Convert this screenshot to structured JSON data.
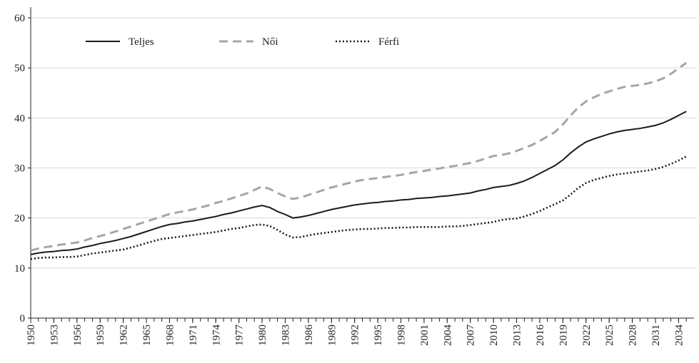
{
  "chart_data": {
    "type": "line",
    "x": [
      1950,
      1951,
      1952,
      1953,
      1954,
      1955,
      1956,
      1957,
      1958,
      1959,
      1960,
      1961,
      1962,
      1963,
      1964,
      1965,
      1966,
      1967,
      1968,
      1969,
      1970,
      1971,
      1972,
      1973,
      1974,
      1975,
      1976,
      1977,
      1978,
      1979,
      1980,
      1981,
      1982,
      1983,
      1984,
      1985,
      1986,
      1987,
      1988,
      1989,
      1990,
      1991,
      1992,
      1993,
      1994,
      1995,
      1996,
      1997,
      1998,
      1999,
      2000,
      2001,
      2002,
      2003,
      2004,
      2005,
      2006,
      2007,
      2008,
      2009,
      2010,
      2011,
      2012,
      2013,
      2014,
      2015,
      2016,
      2017,
      2018,
      2019,
      2020,
      2021,
      2022,
      2023,
      2024,
      2025,
      2026,
      2027,
      2028,
      2029,
      2030,
      2031,
      2032,
      2033,
      2034,
      2035
    ],
    "series": [
      {
        "name": "Teljes",
        "color": "#1a1a1a",
        "dash": "solid",
        "values": [
          12.7,
          13.0,
          13.2,
          13.3,
          13.5,
          13.6,
          13.8,
          14.2,
          14.5,
          14.9,
          15.2,
          15.5,
          15.9,
          16.3,
          16.8,
          17.3,
          17.8,
          18.3,
          18.7,
          18.9,
          19.2,
          19.4,
          19.7,
          20.0,
          20.3,
          20.7,
          21.0,
          21.4,
          21.8,
          22.2,
          22.5,
          22.1,
          21.3,
          20.7,
          20.0,
          20.2,
          20.5,
          20.9,
          21.3,
          21.7,
          22.0,
          22.3,
          22.6,
          22.8,
          23.0,
          23.1,
          23.3,
          23.4,
          23.6,
          23.7,
          23.9,
          24.0,
          24.1,
          24.3,
          24.4,
          24.6,
          24.8,
          25.0,
          25.4,
          25.7,
          26.1,
          26.3,
          26.5,
          26.9,
          27.4,
          28.1,
          28.9,
          29.7,
          30.5,
          31.6,
          33.0,
          34.2,
          35.2,
          35.8,
          36.3,
          36.8,
          37.2,
          37.5,
          37.7,
          37.9,
          38.2,
          38.5,
          39.0,
          39.7,
          40.5,
          41.3
        ]
      },
      {
        "name": "Női",
        "color": "#a6a6a6",
        "dash": "dashed",
        "values": [
          13.5,
          13.9,
          14.2,
          14.4,
          14.7,
          14.9,
          15.1,
          15.5,
          16.0,
          16.4,
          16.8,
          17.3,
          17.8,
          18.3,
          18.8,
          19.3,
          19.8,
          20.3,
          20.8,
          21.1,
          21.4,
          21.7,
          22.1,
          22.5,
          23.0,
          23.4,
          23.9,
          24.4,
          24.9,
          25.6,
          26.3,
          25.8,
          25.0,
          24.3,
          23.8,
          24.1,
          24.6,
          25.1,
          25.6,
          26.1,
          26.5,
          26.9,
          27.3,
          27.6,
          27.8,
          28.0,
          28.2,
          28.4,
          28.6,
          28.9,
          29.2,
          29.4,
          29.7,
          29.9,
          30.2,
          30.4,
          30.7,
          31.0,
          31.4,
          31.9,
          32.4,
          32.6,
          32.9,
          33.4,
          34.0,
          34.6,
          35.4,
          36.3,
          37.2,
          38.7,
          40.5,
          42.1,
          43.3,
          44.1,
          44.8,
          45.3,
          45.8,
          46.2,
          46.4,
          46.6,
          46.9,
          47.3,
          47.9,
          48.8,
          49.9,
          51.0
        ]
      },
      {
        "name": "Férfi",
        "color": "#1a1a1a",
        "dash": "dotted",
        "values": [
          11.8,
          12.0,
          12.1,
          12.1,
          12.2,
          12.2,
          12.3,
          12.6,
          12.9,
          13.1,
          13.3,
          13.5,
          13.7,
          14.1,
          14.5,
          15.0,
          15.4,
          15.8,
          16.0,
          16.2,
          16.4,
          16.6,
          16.8,
          17.0,
          17.2,
          17.5,
          17.8,
          18.0,
          18.3,
          18.6,
          18.7,
          18.4,
          17.6,
          16.7,
          16.1,
          16.2,
          16.5,
          16.8,
          17.0,
          17.2,
          17.4,
          17.6,
          17.7,
          17.8,
          17.8,
          17.9,
          18.0,
          18.0,
          18.1,
          18.1,
          18.2,
          18.2,
          18.2,
          18.2,
          18.3,
          18.3,
          18.4,
          18.6,
          18.8,
          19.0,
          19.2,
          19.6,
          19.8,
          19.9,
          20.3,
          20.8,
          21.4,
          22.1,
          22.8,
          23.5,
          24.7,
          26.0,
          27.0,
          27.6,
          28.0,
          28.4,
          28.7,
          28.9,
          29.1,
          29.3,
          29.5,
          29.8,
          30.2,
          30.8,
          31.5,
          32.3
        ]
      }
    ],
    "xlim": [
      1950,
      2036
    ],
    "xticks": [
      1950,
      1953,
      1956,
      1959,
      1962,
      1965,
      1968,
      1971,
      1974,
      1977,
      1980,
      1983,
      1986,
      1989,
      1992,
      1995,
      1998,
      2001,
      2004,
      2007,
      2010,
      2013,
      2016,
      2019,
      2022,
      2025,
      2028,
      2031,
      2034
    ],
    "ylim": [
      0,
      60
    ],
    "yticks": [
      0,
      10,
      20,
      30,
      40,
      50,
      60
    ],
    "grid": true
  }
}
